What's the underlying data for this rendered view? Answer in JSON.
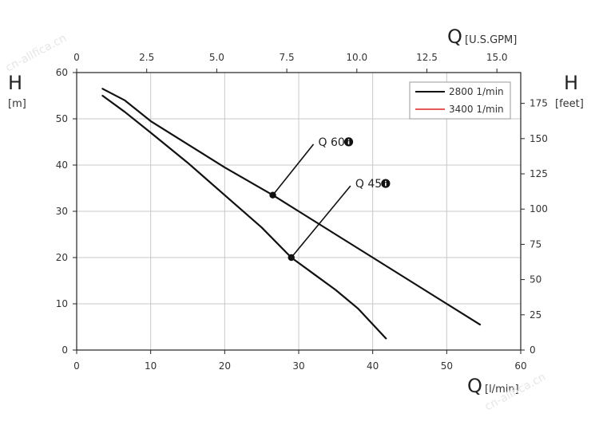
{
  "chart_data": {
    "type": "line",
    "x_bottom": {
      "symbol": "Q",
      "unit": "[l/min]",
      "range": [
        0,
        60
      ],
      "ticks": [
        "0",
        "10",
        "20",
        "30",
        "40",
        "50",
        "60"
      ]
    },
    "x_top": {
      "symbol": "Q",
      "unit": "[U.S.GPM]",
      "range": [
        0,
        15.85
      ],
      "ticks": [
        "0",
        "2.5",
        "5.0",
        "7.5",
        "10.0",
        "12.5",
        "15.0"
      ],
      "tick_values": [
        0,
        2.5,
        5.0,
        7.5,
        10.0,
        12.5,
        15.0
      ]
    },
    "y_left": {
      "symbol": "H",
      "unit": "[m]",
      "range": [
        0,
        60
      ],
      "ticks": [
        "0",
        "10",
        "20",
        "30",
        "40",
        "50",
        "60"
      ]
    },
    "y_right": {
      "symbol": "H",
      "unit": "[feet]",
      "range": [
        0,
        196.85
      ],
      "ticks": [
        "0",
        "25",
        "50",
        "75",
        "100",
        "125",
        "150",
        "175"
      ],
      "tick_values": [
        0,
        25,
        50,
        75,
        100,
        125,
        150,
        175
      ]
    },
    "grid": true,
    "legend_position": "top-right",
    "legend": [
      {
        "label": "2800 1/min",
        "color": "#111111"
      },
      {
        "label": "3400 1/min",
        "color": "#dd2222"
      }
    ],
    "series": [
      {
        "x": [
          3.5,
          6.5,
          10,
          15,
          20,
          26.5,
          30,
          35,
          40,
          45,
          50,
          54.5
        ],
        "y": [
          56.5,
          54,
          49.5,
          44.5,
          39.5,
          33.5,
          30,
          25,
          20,
          15,
          10,
          5.5
        ]
      },
      {
        "x": [
          3.5,
          6.5,
          10,
          15,
          20,
          25,
          29,
          32,
          35,
          38,
          41.8
        ],
        "y": [
          55,
          51.5,
          47,
          40.5,
          33.5,
          26.5,
          20,
          16.5,
          13,
          9,
          2.5
        ]
      }
    ],
    "annotations": [
      {
        "label": "Q 60",
        "point": [
          26.5,
          33.5
        ],
        "label_at": [
          32,
          44.5
        ],
        "info_icon": "info-icon"
      },
      {
        "label": "Q 45",
        "point": [
          29,
          20
        ],
        "label_at": [
          37,
          35.5
        ],
        "info_icon": "info-icon"
      }
    ]
  },
  "watermark": "cn-allfica.cn"
}
